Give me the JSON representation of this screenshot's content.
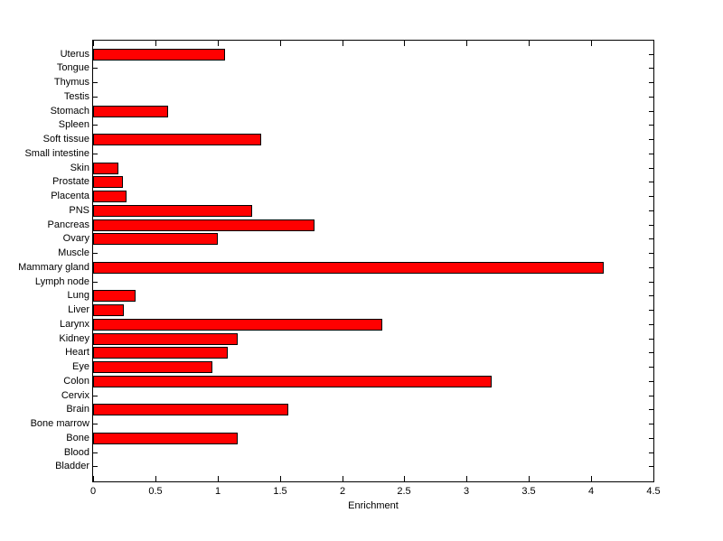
{
  "figure": {
    "background": "#ffffff",
    "axis_color": "#000000"
  },
  "chart_data": {
    "type": "bar",
    "orientation": "horizontal",
    "title": "",
    "xlabel": "Enrichment",
    "ylabel": "",
    "categories": [
      "Uterus",
      "Tongue",
      "Thymus",
      "Testis",
      "Stomach",
      "Spleen",
      "Soft tissue",
      "Small intestine",
      "Skin",
      "Prostate",
      "Placenta",
      "PNS",
      "Pancreas",
      "Ovary",
      "Muscle",
      "Mammary gland",
      "Lymph node",
      "Lung",
      "Liver",
      "Larynx",
      "Kidney",
      "Heart",
      "Eye",
      "Colon",
      "Cervix",
      "Brain",
      "Bone marrow",
      "Bone",
      "Blood",
      "Bladder"
    ],
    "values": [
      1.06,
      0,
      0,
      0,
      0.6,
      0,
      1.35,
      0,
      0.2,
      0.24,
      0.27,
      1.28,
      1.78,
      1.0,
      0,
      4.1,
      0,
      0.34,
      0.25,
      2.32,
      1.16,
      1.08,
      0.96,
      3.2,
      0,
      1.57,
      0,
      1.16,
      0,
      0
    ],
    "xlim": [
      0,
      4.5
    ],
    "xticks": [
      0,
      0.5,
      1,
      1.5,
      2,
      2.5,
      3,
      3.5,
      4,
      4.5
    ],
    "xtick_labels": [
      "0",
      "0.5",
      "1",
      "1.5",
      "2",
      "2.5",
      "3",
      "3.5",
      "4",
      "4.5"
    ],
    "bar_color": "#ff0000",
    "bar_edge_color": "#000000",
    "grid": false,
    "legend": null
  }
}
